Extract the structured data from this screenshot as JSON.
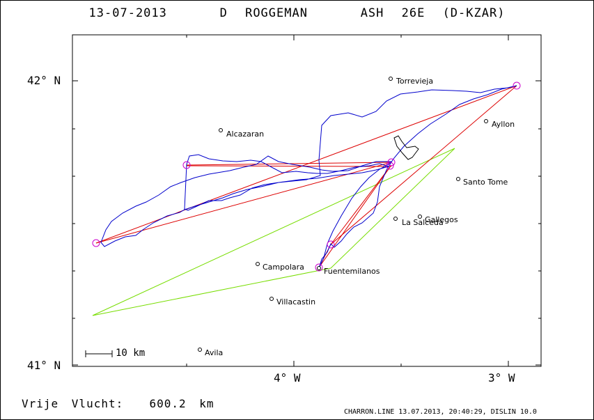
{
  "header": {
    "date": "13-07-2013",
    "pilot": "D ROGGEMAN",
    "glider": "ASH 26E (D-KZAR)"
  },
  "axes": {
    "lat_top": "42° N",
    "lat_bottom": "41° N",
    "lon_left": "4° W",
    "lon_right": "3° W"
  },
  "scale_label": "10 km",
  "footer": {
    "free_flight": "Vrije Vlucht:  600.2 km",
    "credit": "CHARRON.LINE 13.07.2013, 20:40:29, DISLIN 10.0"
  },
  "towns": [
    {
      "name": "Torrevieja"
    },
    {
      "name": "Alcazaran"
    },
    {
      "name": "Ayllon"
    },
    {
      "name": "Santo Tome"
    },
    {
      "name": "Gallegos"
    },
    {
      "name": "La Salceda"
    },
    {
      "name": "Campolara"
    },
    {
      "name": "Fuentemilanos"
    },
    {
      "name": "Villacastin"
    },
    {
      "name": "Avila"
    }
  ],
  "colors": {
    "track": "#0000cc",
    "task": "#dd0000",
    "free_flight": "#77dd00",
    "turnpoint": "#cc00cc"
  }
}
